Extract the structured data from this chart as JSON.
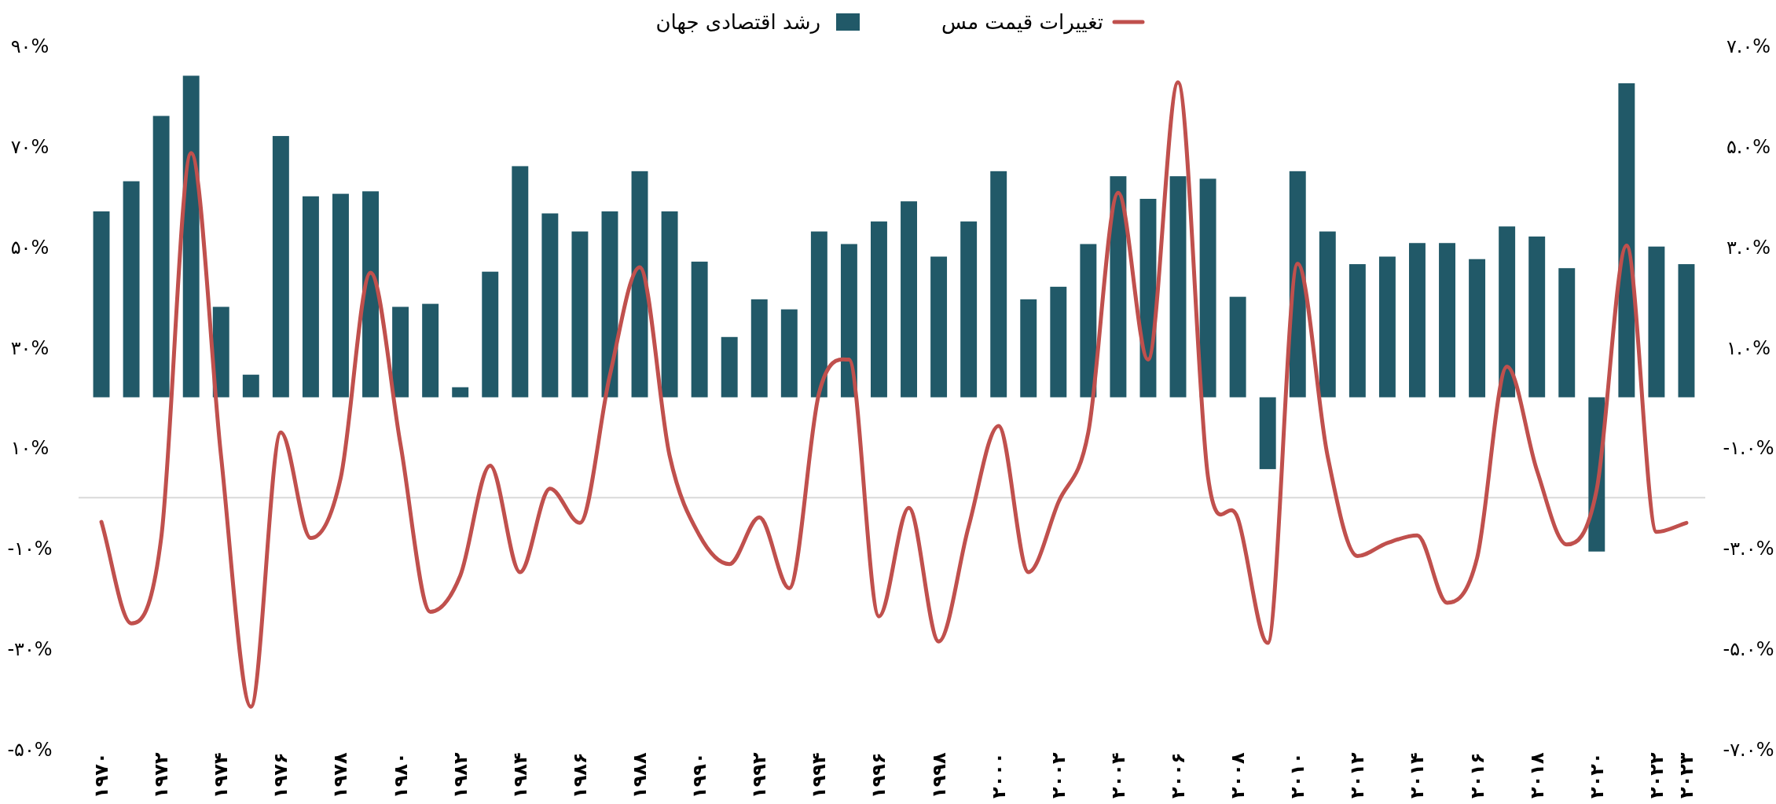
{
  "chart_data": {
    "type": "bar",
    "categories": [
      "۱۹۷۰",
      null,
      "۱۹۷۲",
      null,
      "۱۹۷۴",
      null,
      "۱۹۷۶",
      null,
      "۱۹۷۸",
      null,
      "۱۹۸۰",
      null,
      "۱۹۸۲",
      null,
      "۱۹۸۴",
      null,
      "۱۹۸۶",
      null,
      "۱۹۸۸",
      null,
      "۱۹۹۰",
      null,
      "۱۹۹۲",
      null,
      "۱۹۹۴",
      null,
      "۱۹۹۶",
      null,
      "۱۹۹۸",
      null,
      "۲۰۰۰",
      null,
      "۲۰۰۲",
      null,
      "۲۰۰۴",
      null,
      "۲۰۰۶",
      null,
      "۲۰۰۸",
      null,
      "۲۰۱۰",
      null,
      "۲۰۱۲",
      null,
      "۲۰۱۴",
      null,
      "۲۰۱۶",
      null,
      "۲۰۱۸",
      null,
      "۲۰۲۰",
      null,
      "۲۰۲۲",
      "۲۰۲۳"
    ],
    "series": [
      {
        "name": "رشد اقتصادی جهان",
        "axis": "y2",
        "color": "#215968",
        "values": [
          3.7,
          4.3,
          5.6,
          6.4,
          1.8,
          0.45,
          5.2,
          4.0,
          4.05,
          4.1,
          1.8,
          1.86,
          0.2,
          2.5,
          4.6,
          3.66,
          3.3,
          3.7,
          4.5,
          3.7,
          2.7,
          1.2,
          1.95,
          1.75,
          3.3,
          3.05,
          3.5,
          3.9,
          2.8,
          3.5,
          4.5,
          1.95,
          2.2,
          3.05,
          4.4,
          3.95,
          4.4,
          4.35,
          2.0,
          -1.43,
          4.5,
          3.3,
          2.65,
          2.8,
          3.07,
          3.07,
          2.75,
          3.4,
          3.2,
          2.57,
          -3.07,
          6.25,
          3.0,
          2.65
        ]
      },
      {
        "name": "تغییرات قیمت مس",
        "type": "line",
        "axis": "y",
        "color": "#c0504d",
        "values": [
          -4.8,
          -25,
          -8,
          68.6,
          8.4,
          -41.6,
          13,
          -8,
          3.9,
          44.8,
          10.7,
          -22.7,
          -15.5,
          6.4,
          -14.8,
          1.8,
          -5,
          24.3,
          45.9,
          8.4,
          -7.5,
          -13.2,
          -3.9,
          -18,
          20.9,
          27.5,
          -23.6,
          -2,
          -28.6,
          -5.7,
          14.3,
          -14.8,
          -0.9,
          13,
          60.7,
          27.5,
          82.7,
          4.3,
          -4.1,
          -28.9,
          46.6,
          8.4,
          -11.6,
          -9,
          -7.5,
          -20.9,
          -12,
          26.1,
          5.5,
          -9.3,
          1.6,
          50.2,
          -6.8,
          -5
        ]
      }
    ],
    "ylim": [
      -50,
      90
    ],
    "yticks": [
      {
        "value": 90,
        "label": "۹۰%"
      },
      {
        "value": 70,
        "label": "۷۰%"
      },
      {
        "value": 50,
        "label": "۵۰%"
      },
      {
        "value": 30,
        "label": "۳۰%"
      },
      {
        "value": 10,
        "label": "۱۰%"
      },
      {
        "value": -10,
        "label": "-۱۰%"
      },
      {
        "value": -30,
        "label": "-۳۰%"
      },
      {
        "value": -50,
        "label": "-۵۰%"
      }
    ],
    "y2lim": [
      -7,
      7
    ],
    "y2ticks": [
      {
        "value": 7,
        "label": "۷.۰%"
      },
      {
        "value": 5,
        "label": "۵.۰%"
      },
      {
        "value": 3,
        "label": "۳.۰%"
      },
      {
        "value": 1,
        "label": "۱.۰%"
      },
      {
        "value": -1,
        "label": "-۱.۰%"
      },
      {
        "value": -3,
        "label": "-۳.۰%"
      },
      {
        "value": -5,
        "label": "-۵.۰%"
      },
      {
        "value": -7,
        "label": "-۷.۰%"
      }
    ],
    "ref_lines": [
      {
        "axis": "y",
        "value": 0,
        "color": "#d9d9d9"
      }
    ],
    "legend": "top",
    "grid": false
  }
}
